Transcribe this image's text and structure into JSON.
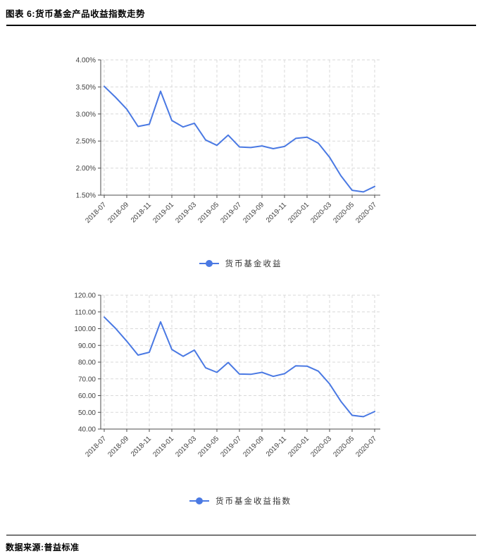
{
  "page": {
    "title": "图表 6:货币基金产品收益指数走势",
    "source_label": "数据来源:普益标准"
  },
  "colors": {
    "line": "#4a79e3",
    "grid": "#d9d9d9",
    "axis": "#4d4d4d",
    "tick_label": "#404040"
  },
  "chart_data": [
    {
      "type": "line",
      "legend": "货币基金收益",
      "legend_position": "bottom",
      "x": [
        "2018-07",
        "2018-08",
        "2018-09",
        "2018-10",
        "2018-11",
        "2018-12",
        "2019-01",
        "2019-02",
        "2019-03",
        "2019-04",
        "2019-05",
        "2019-06",
        "2019-07",
        "2019-08",
        "2019-09",
        "2019-10",
        "2019-11",
        "2019-12",
        "2020-01",
        "2020-02",
        "2020-03",
        "2020-04",
        "2020-05",
        "2020-06",
        "2020-07"
      ],
      "x_label_every": 2,
      "x_tick_labels": [
        "2018-07",
        "2018-09",
        "2018-11",
        "2019-01",
        "2019-03",
        "2019-05",
        "2019-07",
        "2019-09",
        "2019-11",
        "2020-01",
        "2020-03",
        "2020-05",
        "2020-07"
      ],
      "values": [
        3.51,
        3.31,
        3.09,
        2.77,
        2.81,
        3.42,
        2.88,
        2.76,
        2.83,
        2.52,
        2.42,
        2.61,
        2.39,
        2.38,
        2.41,
        2.36,
        2.4,
        2.55,
        2.57,
        2.46,
        2.2,
        1.86,
        1.59,
        1.56,
        1.66
      ],
      "ylim": [
        1.5,
        4.0
      ],
      "y_step": 0.5,
      "y_decimals": 2,
      "y_suffix": "%",
      "y_tick_labels": [
        "1.50%",
        "2.00%",
        "2.50%",
        "3.00%",
        "3.50%",
        "4.00%"
      ],
      "xlabel": "",
      "ylabel": "",
      "grid": true
    },
    {
      "type": "line",
      "legend": "货币基金收益指数",
      "legend_position": "bottom",
      "x": [
        "2018-07",
        "2018-08",
        "2018-09",
        "2018-10",
        "2018-11",
        "2018-12",
        "2019-01",
        "2019-02",
        "2019-03",
        "2019-04",
        "2019-05",
        "2019-06",
        "2019-07",
        "2019-08",
        "2019-09",
        "2019-10",
        "2019-11",
        "2019-12",
        "2020-01",
        "2020-02",
        "2020-03",
        "2020-04",
        "2020-05",
        "2020-06",
        "2020-07"
      ],
      "x_label_every": 2,
      "x_tick_labels": [
        "2018-07",
        "2018-09",
        "2018-11",
        "2019-01",
        "2019-03",
        "2019-05",
        "2019-07",
        "2019-09",
        "2019-11",
        "2020-01",
        "2020-03",
        "2020-05",
        "2020-07"
      ],
      "values": [
        106.9,
        100.2,
        92.5,
        84.2,
        85.9,
        104.1,
        87.6,
        83.5,
        87.2,
        76.6,
        73.9,
        79.8,
        72.9,
        72.7,
        73.9,
        71.5,
        73.1,
        77.8,
        77.6,
        74.6,
        67.0,
        56.6,
        48.2,
        47.4,
        50.5
      ],
      "ylim": [
        40,
        120
      ],
      "y_step": 10,
      "y_decimals": 2,
      "y_suffix": "",
      "y_tick_labels": [
        "40.00",
        "50.00",
        "60.00",
        "70.00",
        "80.00",
        "90.00",
        "100.00",
        "110.00",
        "120.00"
      ],
      "xlabel": "",
      "ylabel": "",
      "grid": true
    }
  ]
}
